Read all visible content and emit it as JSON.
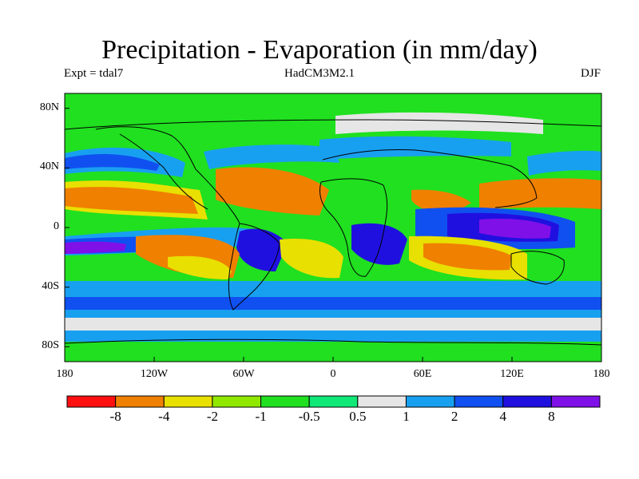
{
  "title": "Precipitation - Evaporation (in mm/day)",
  "subtitle_left": "Expt = tdal7",
  "subtitle_center": "HadCM3M2.1",
  "subtitle_right": "DJF",
  "map": {
    "y_ticks": [
      {
        "label": "80N",
        "lat": 80
      },
      {
        "label": "40N",
        "lat": 40
      },
      {
        "label": "0",
        "lat": 0
      },
      {
        "label": "40S",
        "lat": -40
      },
      {
        "label": "80S",
        "lat": -80
      }
    ],
    "x_ticks": [
      {
        "label": "180",
        "lon": -180
      },
      {
        "label": "120W",
        "lon": -120
      },
      {
        "label": "60W",
        "lon": -60
      },
      {
        "label": "0",
        "lon": 0
      },
      {
        "label": "60E",
        "lon": 60
      },
      {
        "label": "120E",
        "lon": 120
      },
      {
        "label": "180",
        "lon": 180
      }
    ],
    "lon_range": [
      -180,
      180
    ],
    "lat_range": [
      -90,
      90
    ]
  },
  "colorbar": {
    "colors": [
      "#ff1010",
      "#f08000",
      "#e8e000",
      "#90e800",
      "#20e020",
      "#10e878",
      "#e6e6e6",
      "#18a0f0",
      "#1050f0",
      "#2010e0",
      "#8010e8"
    ],
    "labels": [
      "-8",
      "-4",
      "-2",
      "-1",
      "-0.5",
      "0.5",
      "1",
      "2",
      "4",
      "8"
    ]
  },
  "palette": {
    "drying_strong": "#f08000",
    "drying_moderate": "#e8e000",
    "near_zero": "#10e878",
    "neutral": "#e6e6e6",
    "wet": "#18a0f0",
    "very_wet": "#1050f0",
    "extreme_wet": "#2010e0",
    "extreme_wet_max": "#8010e8",
    "background": "#20e020",
    "coast": "#000000"
  }
}
